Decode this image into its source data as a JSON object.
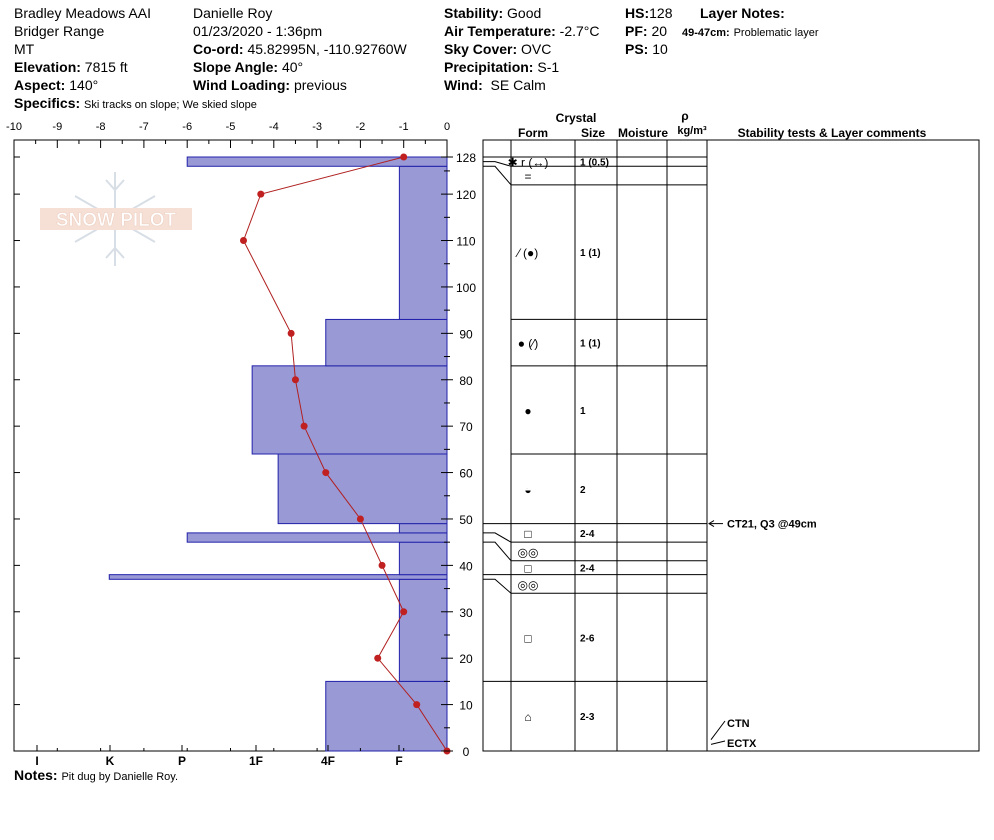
{
  "header": {
    "location": "Bradley Meadows AAI",
    "range": "Bridger Range",
    "state": "MT",
    "elevation_label": "Elevation:",
    "elevation": "7815 ft",
    "aspect_label": "Aspect:",
    "aspect": "140°",
    "specifics_label": "Specifics:",
    "specifics": "Ski tracks on slope; We skied slope",
    "observer": "Danielle Roy",
    "datetime": "01/23/2020 - 1:36pm",
    "coord_label": "Co-ord:",
    "coord": "45.82995N, -110.92760W",
    "slope_label": "Slope Angle:",
    "slope": "40°",
    "wind_loading_label": "Wind Loading:",
    "wind_loading": "previous",
    "stability_label": "Stability:",
    "stability": "Good",
    "air_temp_label": "Air Temperature:",
    "air_temp": "-2.7°C",
    "sky_label": "Sky Cover:",
    "sky": "OVC",
    "precip_label": "Precipitation:",
    "precip": "S-1",
    "wind_label": "Wind:",
    "wind": "SE Calm",
    "hs_label": "HS:",
    "hs": "128",
    "pf_label": "PF:",
    "pf": "20",
    "ps_label": "PS:",
    "ps": "10",
    "layer_notes_label": "Layer Notes:",
    "layer_note_range": "49-47cm:",
    "layer_note_text": "Problematic layer",
    "notes_label": "Notes:",
    "notes": "Pit dug by Danielle Roy.",
    "logo_text": "SNOW PILOT"
  },
  "colors": {
    "hardness_fill": "#9999d6",
    "hardness_stroke": "#2222aa",
    "temp_line": "#b02020",
    "temp_point": "#c02020"
  },
  "chart_data": {
    "type": "snow_profile",
    "temp_axis": {
      "min": -10,
      "max": 0,
      "ticks": [
        "-10",
        "-9",
        "-8",
        "-7",
        "-6",
        "-5",
        "-4",
        "-3",
        "-2",
        "-1",
        "0"
      ]
    },
    "hardness_axis": {
      "labels": [
        "I",
        "K",
        "P",
        "1F",
        "4F",
        "F"
      ]
    },
    "height_axis": {
      "min": 0,
      "max": 128,
      "ticks": [
        0,
        10,
        20,
        30,
        40,
        50,
        60,
        70,
        80,
        90,
        100,
        110,
        120,
        128
      ]
    },
    "temperature_profile": [
      {
        "height": 0,
        "temp": 0
      },
      {
        "height": 10,
        "temp": -0.7
      },
      {
        "height": 20,
        "temp": -1.6
      },
      {
        "height": 30,
        "temp": -1.0
      },
      {
        "height": 40,
        "temp": -1.5
      },
      {
        "height": 50,
        "temp": -2.0
      },
      {
        "height": 60,
        "temp": -2.8
      },
      {
        "height": 70,
        "temp": -3.3
      },
      {
        "height": 80,
        "temp": -3.5
      },
      {
        "height": 90,
        "temp": -3.6
      },
      {
        "height": 110,
        "temp": -4.7
      },
      {
        "height": 120,
        "temp": -4.3
      },
      {
        "height": 128,
        "temp": -1.0
      }
    ],
    "hardness_layers": [
      {
        "bottom": 0,
        "top": 15,
        "hardness": 2.8
      },
      {
        "bottom": 15,
        "top": 37,
        "hardness": 1.1
      },
      {
        "bottom": 37,
        "top": 38,
        "hardness": 7.8
      },
      {
        "bottom": 38,
        "top": 45,
        "hardness": 1.1
      },
      {
        "bottom": 45,
        "top": 47,
        "hardness": 6.0
      },
      {
        "bottom": 47,
        "top": 49,
        "hardness": 1.1
      },
      {
        "bottom": 49,
        "top": 64,
        "hardness": 3.9
      },
      {
        "bottom": 64,
        "top": 83,
        "hardness": 4.5
      },
      {
        "bottom": 83,
        "top": 93,
        "hardness": 2.8
      },
      {
        "bottom": 93,
        "top": 126,
        "hardness": 1.1
      },
      {
        "bottom": 126,
        "top": 128,
        "hardness": 6.0
      }
    ],
    "crystal_header": "Crystal",
    "columns": [
      "Form",
      "Size",
      "Moisture",
      "ρ",
      "kg/m³",
      "Stability tests & Layer comments"
    ],
    "layers": [
      {
        "bottom": 126,
        "top": 128,
        "form": "✱ r (↔)",
        "size": "1 (0.5)"
      },
      {
        "bottom": 122,
        "top": 126,
        "form": "=",
        "size": ""
      },
      {
        "bottom": 93,
        "top": 122,
        "form": "⁄ (●)",
        "size": "1 (1)"
      },
      {
        "bottom": 83,
        "top": 93,
        "form": "● (⁄)",
        "size": "1 (1)"
      },
      {
        "bottom": 64,
        "top": 83,
        "form": "●",
        "size": "1"
      },
      {
        "bottom": 49,
        "top": 64,
        "form": "◒",
        "size": "2"
      },
      {
        "bottom": 45,
        "top": 49,
        "form": "□",
        "size": "2-4"
      },
      {
        "bottom": 41,
        "top": 45,
        "form": "◎◎",
        "size": ""
      },
      {
        "bottom": 38,
        "top": 41,
        "form": "□",
        "size": "2-4"
      },
      {
        "bottom": 34,
        "top": 38,
        "form": "◎◎",
        "size": ""
      },
      {
        "bottom": 15,
        "top": 34,
        "form": "□",
        "size": "2-6"
      },
      {
        "bottom": 0,
        "top": 15,
        "form": "⌂",
        "size": "2-3"
      }
    ],
    "stability_tests": [
      {
        "height": 49,
        "label": "CT21, Q3 @49cm"
      },
      {
        "height": 2,
        "label": "CTN"
      },
      {
        "height": 1,
        "label": "ECTX"
      }
    ]
  }
}
